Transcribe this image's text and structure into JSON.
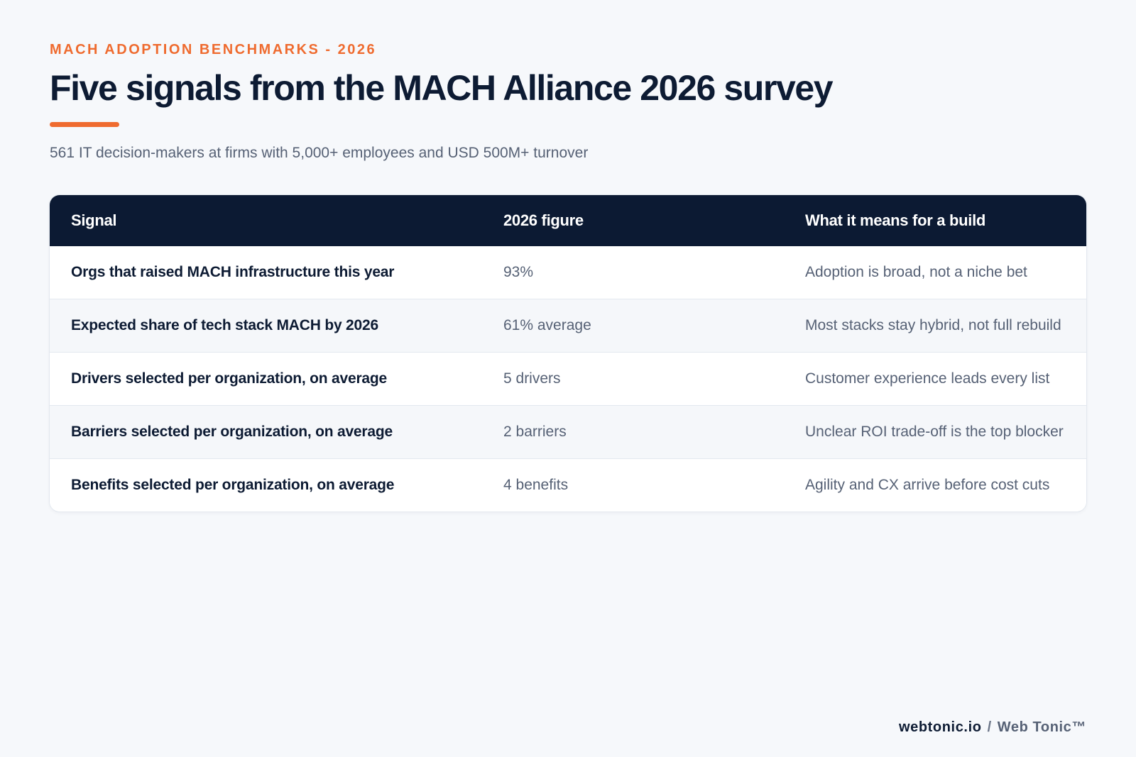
{
  "header": {
    "eyebrow": "MACH ADOPTION BENCHMARKS - 2026",
    "title": "Five signals from the MACH Alliance 2026 survey",
    "subtitle": "561 IT decision-makers at firms with 5,000+ employees and USD 500M+ turnover"
  },
  "table": {
    "columns": [
      "Signal",
      "2026 figure",
      "What it means for a build"
    ],
    "rows": [
      {
        "signal": "Orgs that raised MACH infrastructure this year",
        "figure": "93%",
        "meaning": "Adoption is broad, not a niche bet"
      },
      {
        "signal": "Expected share of tech stack MACH by 2026",
        "figure": "61% average",
        "meaning": "Most stacks stay hybrid, not full rebuild"
      },
      {
        "signal": "Drivers selected per organization, on average",
        "figure": "5 drivers",
        "meaning": "Customer experience leads every list"
      },
      {
        "signal": "Barriers selected per organization, on average",
        "figure": "2 barriers",
        "meaning": "Unclear ROI trade-off is the top blocker"
      },
      {
        "signal": "Benefits selected per organization, on average",
        "figure": "4 benefits",
        "meaning": "Agility and CX arrive before cost cuts"
      }
    ]
  },
  "footer": {
    "domain": "webtonic.io",
    "separator": "/",
    "brand": "Web Tonic™"
  },
  "colors": {
    "accent": "#ef6b2f",
    "navy": "#0c1a33",
    "background": "#f6f8fb"
  }
}
